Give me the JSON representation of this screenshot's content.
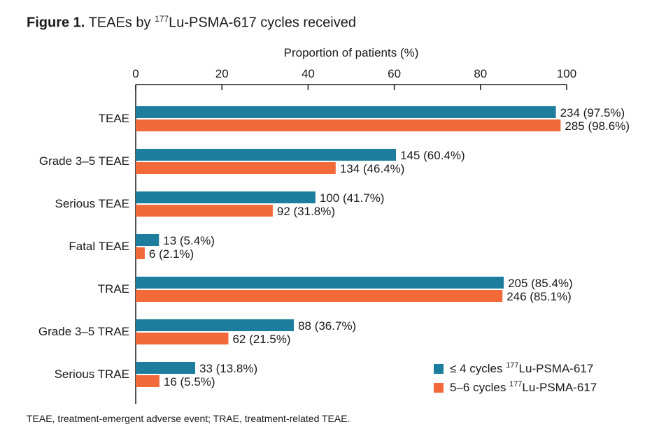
{
  "figure": {
    "label": "Figure 1.",
    "title_prefix": "TEAEs by ",
    "title_sup": "177",
    "title_suffix": "Lu-PSMA-617 cycles received"
  },
  "footnote": "TEAE, treatment-emergent adverse event; TRAE, treatment-related TEAE.",
  "colors": {
    "series1": "#1d7d9c",
    "series2": "#f26a3a",
    "axis": "#1a1a1a"
  },
  "chart_data": {
    "type": "bar",
    "orientation": "horizontal",
    "title": "Figure 1. TEAEs by 177Lu-PSMA-617 cycles received",
    "xlabel": "Proportion of patients (%)",
    "xlim": [
      0,
      100
    ],
    "xticks": [
      "0",
      "20",
      "40",
      "60",
      "80",
      "100"
    ],
    "grid": false,
    "legend_position": "bottom-right",
    "categories": [
      "TEAE",
      "Grade 3–5 TEAE",
      "Serious TEAE",
      "Fatal TEAE",
      "TRAE",
      "Grade 3–5 TRAE",
      "Serious TRAE"
    ],
    "series": [
      {
        "name": "≤ 4 cycles 177Lu-PSMA-617",
        "legend_prefix": "≤ 4 cycles ",
        "legend_sup": "177",
        "legend_suffix": "Lu-PSMA-617",
        "values": [
          97.5,
          60.4,
          41.7,
          5.4,
          85.4,
          36.7,
          13.8
        ],
        "labels": [
          "234 (97.5%)",
          "145 (60.4%)",
          "100 (41.7%)",
          "13 (5.4%)",
          "205 (85.4%)",
          "88 (36.7%)",
          "33 (13.8%)"
        ]
      },
      {
        "name": "5–6 cycles 177Lu-PSMA-617",
        "legend_prefix": "5–6 cycles ",
        "legend_sup": "177",
        "legend_suffix": "Lu-PSMA-617",
        "values": [
          98.6,
          46.4,
          31.8,
          2.1,
          85.1,
          21.5,
          5.5
        ],
        "labels": [
          "285 (98.6%)",
          "134 (46.4%)",
          "92 (31.8%)",
          "6 (2.1%)",
          "246 (85.1%)",
          "62 (21.5%)",
          "16 (5.5%)"
        ]
      }
    ]
  }
}
